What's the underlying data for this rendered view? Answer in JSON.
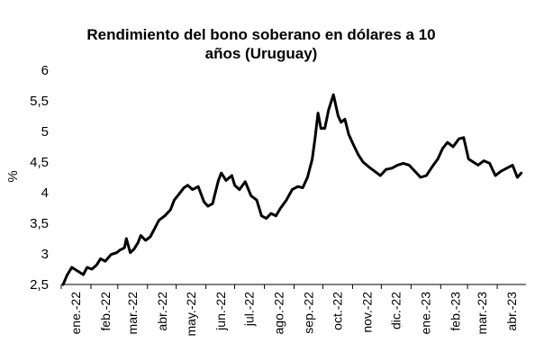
{
  "chart_data": {
    "type": "line",
    "title_line1": "Rendimiento del bono soberano en dólares a 10",
    "title_line2": "años (Uruguay)",
    "ylabel": "%",
    "ylim": [
      2.5,
      6
    ],
    "yticks": [
      "2,5",
      "3",
      "3,5",
      "4",
      "4,5",
      "5",
      "5,5",
      "6"
    ],
    "yticks_values": [
      2.5,
      3,
      3.5,
      4,
      4.5,
      5,
      5.5,
      6
    ],
    "xtick_labels": [
      "ene.-22",
      "feb.-22",
      "mar.-22",
      "abr.-22",
      "may.-22",
      "jun.-22",
      "jul.-22",
      "ago.-22",
      "sep.-22",
      "oct.-22",
      "nov.-22",
      "dic.-22",
      "ene.-23",
      "feb.-23",
      "mar.-23",
      "abr.-23"
    ],
    "x_start": "2022-01-01",
    "x_end": "2023-05-01",
    "series": [
      {
        "color": "#000000",
        "x": [
          "2022-01-03",
          "2022-01-07",
          "2022-01-12",
          "2022-01-18",
          "2022-01-24",
          "2022-01-28",
          "2022-02-02",
          "2022-02-07",
          "2022-02-11",
          "2022-02-16",
          "2022-02-22",
          "2022-02-28",
          "2022-03-03",
          "2022-03-08",
          "2022-03-10",
          "2022-03-14",
          "2022-03-18",
          "2022-03-22",
          "2022-03-25",
          "2022-03-30",
          "2022-04-04",
          "2022-04-08",
          "2022-04-13",
          "2022-04-19",
          "2022-04-25",
          "2022-04-29",
          "2022-05-04",
          "2022-05-09",
          "2022-05-13",
          "2022-05-18",
          "2022-05-24",
          "2022-05-30",
          "2022-06-03",
          "2022-06-08",
          "2022-06-10",
          "2022-06-14",
          "2022-06-17",
          "2022-06-22",
          "2022-06-28",
          "2022-07-01",
          "2022-07-06",
          "2022-07-12",
          "2022-07-18",
          "2022-07-24",
          "2022-07-29",
          "2022-08-03",
          "2022-08-08",
          "2022-08-13",
          "2022-08-18",
          "2022-08-24",
          "2022-08-30",
          "2022-09-05",
          "2022-09-10",
          "2022-09-15",
          "2022-09-20",
          "2022-09-23",
          "2022-09-26",
          "2022-09-29",
          "2022-10-03",
          "2022-10-07",
          "2022-10-12",
          "2022-10-17",
          "2022-10-20",
          "2022-10-24",
          "2022-10-28",
          "2022-11-02",
          "2022-11-07",
          "2022-11-12",
          "2022-11-18",
          "2022-11-24",
          "2022-11-30",
          "2022-12-06",
          "2022-12-12",
          "2022-12-18",
          "2022-12-24",
          "2022-12-30",
          "2023-01-05",
          "2023-01-11",
          "2023-01-17",
          "2023-01-23",
          "2023-01-29",
          "2023-02-03",
          "2023-02-08",
          "2023-02-14",
          "2023-02-20",
          "2023-02-25",
          "2023-03-02",
          "2023-03-07",
          "2023-03-12",
          "2023-03-18",
          "2023-03-24",
          "2023-03-30",
          "2023-04-05",
          "2023-04-11",
          "2023-04-17",
          "2023-04-22",
          "2023-04-26"
        ],
        "y": [
          2.5,
          2.65,
          2.78,
          2.72,
          2.66,
          2.78,
          2.75,
          2.82,
          2.92,
          2.88,
          2.99,
          3.02,
          3.06,
          3.1,
          3.25,
          3.02,
          3.08,
          3.18,
          3.3,
          3.22,
          3.28,
          3.4,
          3.55,
          3.62,
          3.72,
          3.88,
          3.98,
          4.08,
          4.12,
          4.05,
          4.1,
          3.85,
          3.78,
          3.82,
          3.95,
          4.2,
          4.32,
          4.2,
          4.28,
          4.12,
          4.05,
          4.18,
          3.95,
          3.88,
          3.62,
          3.58,
          3.66,
          3.62,
          3.75,
          3.88,
          4.05,
          4.1,
          4.08,
          4.25,
          4.55,
          4.9,
          5.3,
          5.05,
          5.05,
          5.35,
          5.6,
          5.25,
          5.15,
          5.2,
          4.95,
          4.78,
          4.62,
          4.5,
          4.42,
          4.35,
          4.28,
          4.38,
          4.4,
          4.45,
          4.48,
          4.45,
          4.35,
          4.25,
          4.28,
          4.42,
          4.55,
          4.72,
          4.82,
          4.75,
          4.88,
          4.9,
          4.55,
          4.5,
          4.45,
          4.52,
          4.48,
          4.28,
          4.35,
          4.4,
          4.45,
          4.25,
          4.32
        ]
      }
    ],
    "grid": false,
    "legend": "none"
  }
}
